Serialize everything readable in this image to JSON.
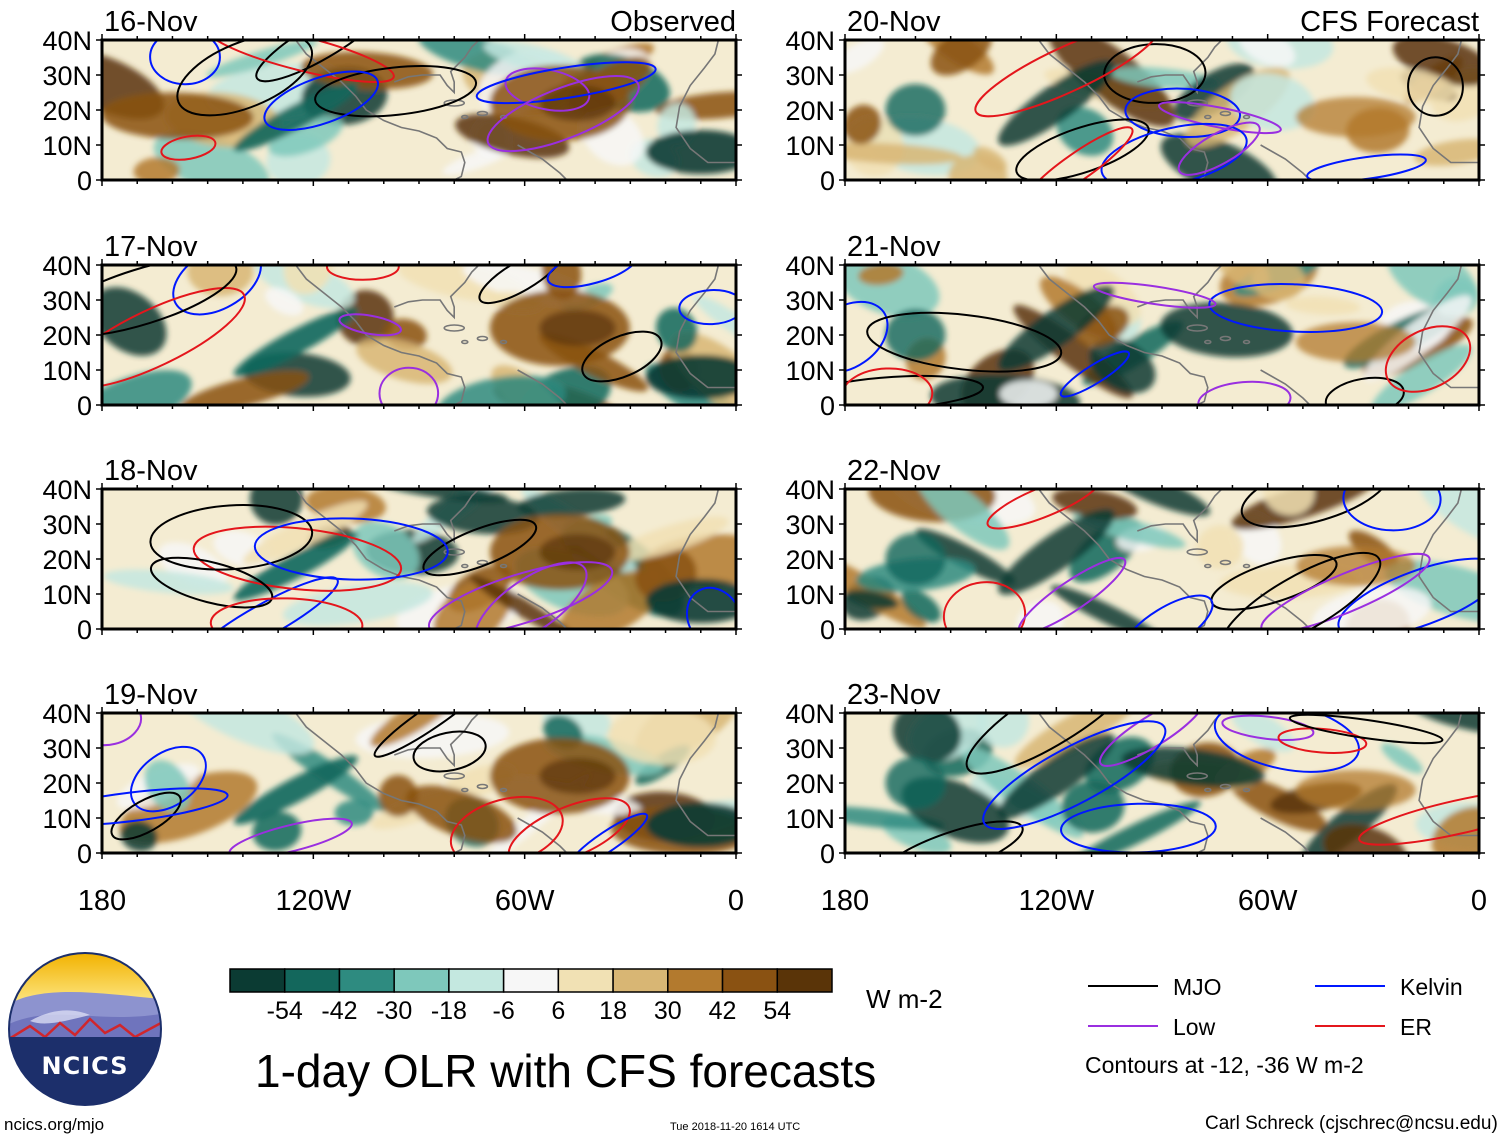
{
  "chart_data": {
    "type": "heatmap",
    "title": "1-day OLR with CFS forecasts",
    "unit": "W m-2",
    "left_column_label": "Observed",
    "right_column_label": "CFS Forecast",
    "panels": [
      {
        "date": "16-Nov",
        "kind": "Observed"
      },
      {
        "date": "17-Nov",
        "kind": "Observed"
      },
      {
        "date": "18-Nov",
        "kind": "Observed"
      },
      {
        "date": "19-Nov",
        "kind": "Observed"
      },
      {
        "date": "20-Nov",
        "kind": "CFS Forecast"
      },
      {
        "date": "21-Nov",
        "kind": "CFS Forecast"
      },
      {
        "date": "22-Nov",
        "kind": "CFS Forecast"
      },
      {
        "date": "23-Nov",
        "kind": "CFS Forecast"
      }
    ],
    "y_ticks": [
      "40N",
      "30N",
      "20N",
      "10N",
      "0"
    ],
    "x_ticks": [
      "180",
      "120W",
      "60W",
      "0"
    ],
    "x_range_deg_lon": [
      -180,
      0
    ],
    "y_range_deg_lat": [
      0,
      40
    ],
    "colorbar": {
      "labels": [
        "-54",
        "-42",
        "-30",
        "-18",
        "-6",
        "6",
        "18",
        "30",
        "42",
        "54"
      ],
      "colors": [
        "#0b3b33",
        "#13675c",
        "#2e8b80",
        "#7ec8bb",
        "#c4e8e0",
        "#f7f7f7",
        "#f1e1b4",
        "#d8b674",
        "#b37a2e",
        "#8a5212",
        "#5a3408"
      ]
    },
    "contour_legend": [
      {
        "name": "MJO",
        "color": "#000000"
      },
      {
        "name": "Kelvin",
        "color": "#0018ff"
      },
      {
        "name": "Low",
        "color": "#9a2fe0"
      },
      {
        "name": "ER",
        "color": "#e4161c"
      }
    ],
    "contour_note": "Contours at -12, -36 W m-2"
  },
  "logo": {
    "text": "NCICS"
  },
  "footer": {
    "url": "ncics.org/mjo",
    "timestamp": "Tue 2018-11-20 1614 UTC",
    "credit": "Carl Schreck (cjschrec@ncsu.edu)"
  }
}
